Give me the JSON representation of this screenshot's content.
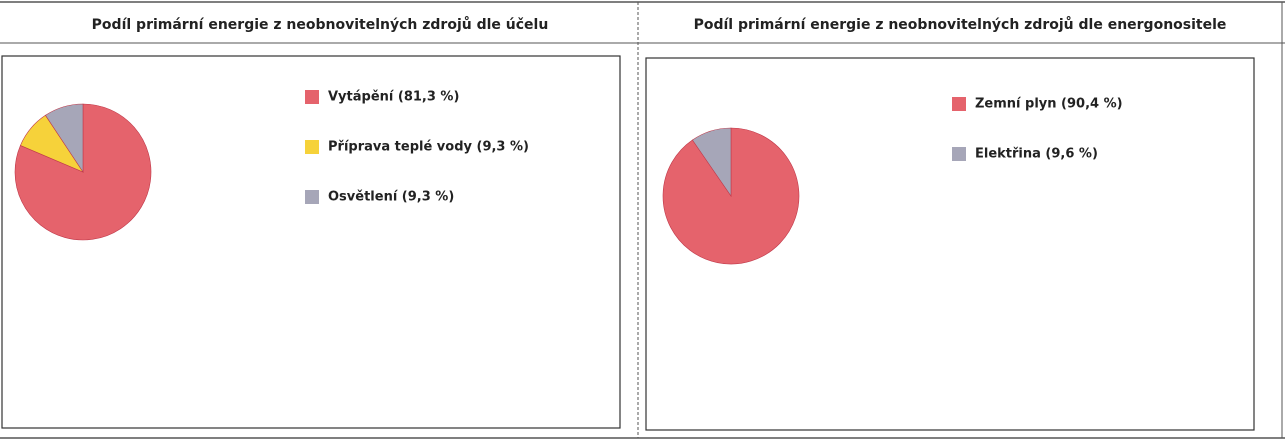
{
  "chart_data": [
    {
      "type": "pie",
      "title": "Podíl primární energie z neobnovitelných zdrojů dle účelu",
      "categories": [
        "Vytápění (81,3 %)",
        "Příprava teplé vody (9,3 %)",
        "Osvětlení (9,3 %)"
      ],
      "values": [
        81.3,
        9.3,
        9.3
      ],
      "colors": [
        "#e5636c",
        "#f6d23a",
        "#a6a6b8"
      ]
    },
    {
      "type": "pie",
      "title": "Podíl primární energie z neobnovitelných zdrojů dle energonositele",
      "categories": [
        "Zemní plyn (90,4 %)",
        "Elektřina (9,6 %)"
      ],
      "values": [
        90.4,
        9.6
      ],
      "colors": [
        "#e5636c",
        "#a6a6b8"
      ]
    }
  ]
}
